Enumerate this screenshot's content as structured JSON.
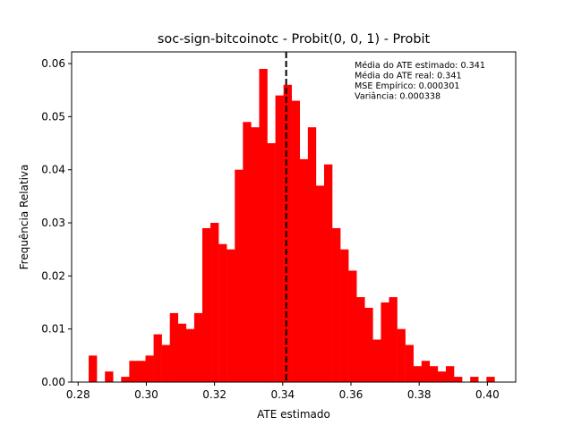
{
  "chart_data": {
    "type": "bar",
    "subtype": "histogram",
    "title": "soc-sign-bitcoinotc - Probit(0, 0, 1) - Probit",
    "xlabel": "ATE estimado",
    "ylabel": "Frequência Relativa",
    "xlim": [
      0.2781,
      0.4083
    ],
    "ylim": [
      0.0,
      0.0622
    ],
    "x_ticks": [
      0.28,
      0.3,
      0.32,
      0.34,
      0.36,
      0.38,
      0.4
    ],
    "x_tick_labels": [
      "0.28",
      "0.30",
      "0.32",
      "0.34",
      "0.36",
      "0.38",
      "0.40"
    ],
    "y_ticks": [
      0.0,
      0.01,
      0.02,
      0.03,
      0.04,
      0.05,
      0.06
    ],
    "y_tick_labels": [
      "0.00",
      "0.01",
      "0.02",
      "0.03",
      "0.04",
      "0.05",
      "0.06"
    ],
    "bin_start": 0.2831,
    "bin_width": 0.00238,
    "values": [
      0.005,
      0.0,
      0.002,
      0.0,
      0.001,
      0.004,
      0.004,
      0.005,
      0.009,
      0.007,
      0.013,
      0.011,
      0.01,
      0.013,
      0.029,
      0.03,
      0.026,
      0.025,
      0.04,
      0.049,
      0.048,
      0.059,
      0.045,
      0.054,
      0.056,
      0.053,
      0.042,
      0.048,
      0.037,
      0.041,
      0.029,
      0.025,
      0.021,
      0.016,
      0.014,
      0.008,
      0.015,
      0.016,
      0.01,
      0.007,
      0.003,
      0.004,
      0.003,
      0.002,
      0.003,
      0.001,
      0.0,
      0.001,
      0.0,
      0.001
    ],
    "bar_color": "#ff0000",
    "vline": {
      "x": 0.341,
      "style": "dashed",
      "color": "#000000"
    },
    "annotations": [
      "Média do ATE estimado: 0.341",
      "Média do ATE real: 0.341",
      "MSE Empírico: 0.000301",
      "Variância: 0.000338"
    ],
    "grid": false
  }
}
